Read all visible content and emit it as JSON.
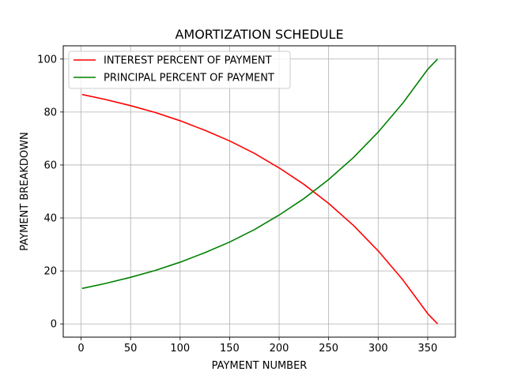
{
  "chart_data": {
    "type": "line",
    "title": "AMORTIZATION SCHEDULE",
    "xlabel": "PAYMENT NUMBER",
    "ylabel": "PAYMENT BREAKDOWN",
    "xlim": [
      -18,
      378
    ],
    "ylim": [
      -5,
      105
    ],
    "xticks": [
      0,
      50,
      100,
      150,
      200,
      250,
      300,
      350
    ],
    "yticks": [
      0,
      20,
      40,
      60,
      80,
      100
    ],
    "grid": true,
    "legend_position": "upper-left",
    "x": [
      1,
      25,
      50,
      75,
      100,
      125,
      150,
      175,
      200,
      225,
      250,
      275,
      300,
      325,
      350,
      360
    ],
    "series": [
      {
        "name": "INTEREST PERCENT OF PAYMENT",
        "color": "#ff0000",
        "values": [
          86.6,
          84.7,
          82.4,
          79.8,
          76.7,
          73.1,
          69.1,
          64.4,
          58.9,
          52.7,
          45.5,
          37.2,
          27.6,
          16.6,
          3.9,
          0.0
        ]
      },
      {
        "name": "PRINCIPAL PERCENT OF PAYMENT",
        "color": "#008000",
        "values": [
          13.4,
          15.3,
          17.6,
          20.2,
          23.3,
          26.9,
          30.9,
          35.6,
          41.1,
          47.3,
          54.5,
          62.8,
          72.4,
          83.4,
          96.1,
          100.0
        ]
      }
    ]
  }
}
